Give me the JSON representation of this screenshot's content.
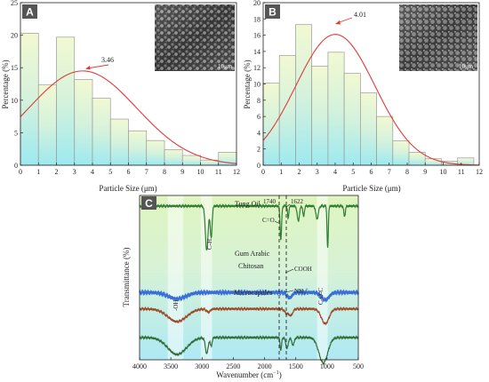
{
  "chart_data": [
    {
      "panel": "A",
      "type": "bar",
      "xlabel": "Particle Size (μm)",
      "ylabel": "Percentage (%)",
      "xlim": [
        0,
        12
      ],
      "ylim": [
        0,
        25
      ],
      "xticks": [
        "0",
        "1",
        "2",
        "3",
        "4",
        "5",
        "6",
        "7",
        "8",
        "9",
        "10",
        "11",
        "12"
      ],
      "yticks": [
        "0",
        "5",
        "10",
        "15",
        "20",
        "25"
      ],
      "bins": [
        [
          0,
          1
        ],
        [
          1,
          2
        ],
        [
          2,
          3
        ],
        [
          3,
          4
        ],
        [
          4,
          5
        ],
        [
          5,
          6
        ],
        [
          6,
          7
        ],
        [
          7,
          8
        ],
        [
          8,
          9
        ],
        [
          9,
          10
        ],
        [
          10,
          11
        ],
        [
          11,
          12
        ]
      ],
      "values": [
        20.3,
        12.4,
        19.7,
        13.2,
        10.3,
        7.1,
        5.3,
        3.8,
        2.4,
        1.5,
        0.8,
        2.0
      ],
      "fit_curve": {
        "peak_x": 3.46,
        "peak_y": 14.5,
        "sigma": 3.0
      },
      "peak_label": "3.46",
      "inset_scale": "10μm",
      "grid": false
    },
    {
      "panel": "B",
      "type": "bar",
      "xlabel": "Particle Size (μm)",
      "ylabel": "Percentage (%)",
      "xlim": [
        0,
        12
      ],
      "ylim": [
        0,
        20
      ],
      "xticks": [
        "0",
        "1",
        "2",
        "3",
        "4",
        "5",
        "6",
        "7",
        "8",
        "9",
        "10",
        "11",
        "12"
      ],
      "yticks": [
        "0",
        "2",
        "4",
        "6",
        "8",
        "10",
        "12",
        "14",
        "16",
        "18",
        "20"
      ],
      "bins": [
        [
          0,
          0.9
        ],
        [
          0.9,
          1.8
        ],
        [
          1.8,
          2.7
        ],
        [
          2.7,
          3.6
        ],
        [
          3.6,
          4.5
        ],
        [
          4.5,
          5.4
        ],
        [
          5.4,
          6.3
        ],
        [
          6.3,
          7.2
        ],
        [
          7.2,
          8.1
        ],
        [
          8.1,
          9.0
        ],
        [
          9.0,
          9.9
        ],
        [
          9.9,
          10.8
        ],
        [
          10.8,
          11.7
        ]
      ],
      "values": [
        10.1,
        13.5,
        17.3,
        12.2,
        13.9,
        11.3,
        8.9,
        6.0,
        3.0,
        1.6,
        0.8,
        0.5,
        0.9
      ],
      "fit_curve": {
        "peak_x": 4.01,
        "peak_y": 16.1,
        "sigma": 2.2
      },
      "peak_label": "4.01",
      "inset_scale": "10μm",
      "grid": false
    },
    {
      "panel": "C",
      "type": "line",
      "xlabel": "Wavenumber (cm⁻¹)",
      "ylabel": "Transmittance (%)",
      "xlim": [
        4000,
        500
      ],
      "xticks": [
        "4000",
        "3500",
        "3000",
        "2500",
        "2000",
        "1500",
        "1000",
        "500"
      ],
      "series": [
        {
          "name": "Tung Oil",
          "color": "#2e7d32",
          "baseline": 0.9,
          "bands": [
            [
              2925,
              0.42,
              22
            ],
            [
              2855,
              0.3,
              15
            ],
            [
              1740,
              0.32,
              12
            ],
            [
              1622,
              0.12,
              10
            ],
            [
              1460,
              0.14,
              18
            ],
            [
              1375,
              0.1,
              12
            ],
            [
              1160,
              0.12,
              20
            ],
            [
              990,
              0.4,
              10
            ],
            [
              720,
              0.1,
              12
            ]
          ]
        },
        {
          "name": "Gum Arabic",
          "color": "#3a6fd8",
          "baseline": 0.085,
          "bands": [
            [
              3400,
              0.06,
              140
            ],
            [
              1600,
              0.05,
              40
            ],
            [
              1030,
              0.07,
              60
            ]
          ]
        },
        {
          "name": "Chitosan",
          "color": "#9c4a2a",
          "baseline": -0.07,
          "bands": [
            [
              3400,
              0.12,
              150
            ],
            [
              2900,
              0.03,
              30
            ],
            [
              1650,
              0.04,
              30
            ],
            [
              1580,
              0.06,
              30
            ],
            [
              1030,
              0.14,
              60
            ]
          ]
        },
        {
          "name": "Microcapules",
          "color": "#356d3a",
          "baseline": -0.34,
          "bands": [
            [
              3400,
              0.16,
              150
            ],
            [
              2925,
              0.15,
              22
            ],
            [
              2855,
              0.08,
              15
            ],
            [
              1740,
              0.12,
              12
            ],
            [
              1640,
              0.1,
              20
            ],
            [
              1545,
              0.07,
              20
            ],
            [
              1060,
              0.24,
              70
            ]
          ]
        }
      ],
      "annotations": [
        "1740",
        "1622",
        "C=O",
        "C-H",
        "-OH",
        "COOH",
        "NH₃⁺",
        "C-O-C"
      ],
      "highlight_bands": [
        [
          3550,
          3300
        ],
        [
          3020,
          2840
        ],
        [
          1160,
          990
        ]
      ]
    }
  ],
  "panels": {
    "a": {
      "letter": "A",
      "peak_label": "3.46",
      "scale": "10μm",
      "xlabel": "Particle Size (μm)",
      "ylabel": "Percentage (%)"
    },
    "b": {
      "letter": "B",
      "peak_label": "4.01",
      "scale": "10μm",
      "xlabel": "Particle Size (μm)",
      "ylabel": "Percentage (%)"
    },
    "c": {
      "letter": "C",
      "xlabel": "Wavenumber (cm",
      "xlabel_sup": "−1",
      "xlabel_end": ")",
      "ylabel": "Transmittance (%)",
      "ann": {
        "w1740": "1740",
        "w1622": "1622",
        "co": "C=O",
        "ch": "C-H",
        "oh": "-OH",
        "cooh": "COOH",
        "nh": "NH",
        "nh_sub": "3",
        "nh_sup": "+",
        "coc": "C-O-C"
      }
    }
  }
}
